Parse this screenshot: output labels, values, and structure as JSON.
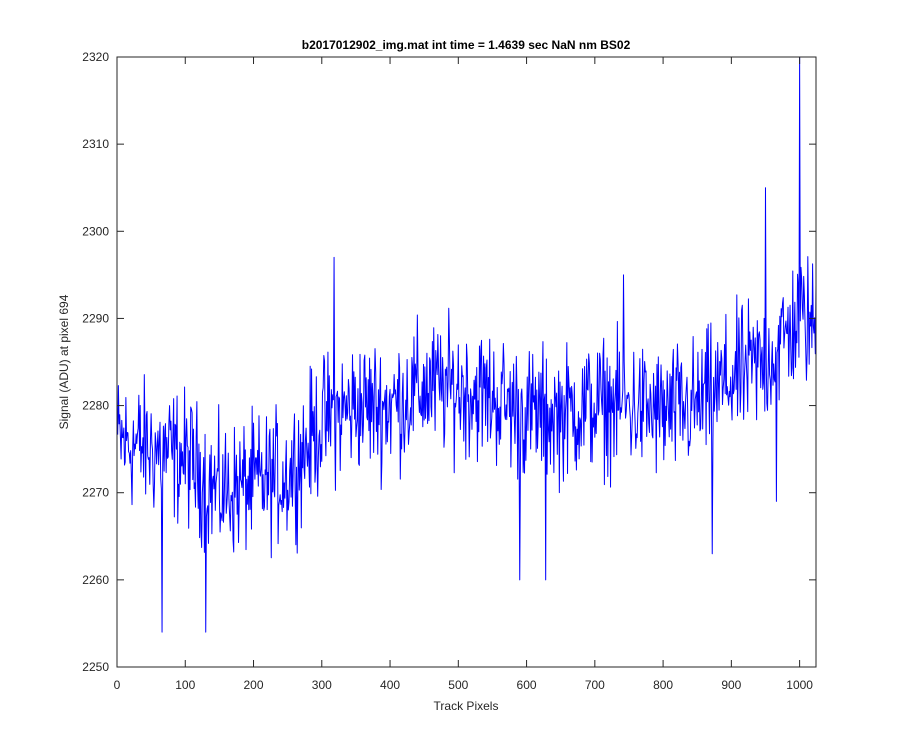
{
  "chart_data": {
    "type": "line",
    "title": "b2017012902_img.mat int time = 1.4639 sec  NaN nm BS02",
    "xlabel": "Track Pixels",
    "ylabel": "Signal (ADU) at pixel 694",
    "xlim": [
      0,
      1024
    ],
    "ylim": [
      2250,
      2320
    ],
    "xticks": [
      "0",
      "100",
      "200",
      "300",
      "400",
      "500",
      "600",
      "700",
      "800",
      "900",
      "1000"
    ],
    "yticks": [
      "2250",
      "2260",
      "2270",
      "2280",
      "2290",
      "2300",
      "2310",
      "2320"
    ],
    "grid": false,
    "line_color": "#0000ff",
    "series": [
      {
        "x_start": 1,
        "x_step": 1,
        "noise_amplitude": 8,
        "trend_points": {
          "x": [
            0,
            100,
            150,
            200,
            250,
            300,
            350,
            400,
            450,
            500,
            550,
            600,
            650,
            700,
            750,
            800,
            850,
            900,
            950,
            1000,
            1024
          ],
          "y": [
            2276,
            2274,
            2270,
            2271,
            2272,
            2278,
            2280,
            2280,
            2282,
            2282,
            2281,
            2279,
            2279,
            2280,
            2280,
            2279,
            2280,
            2283,
            2285,
            2290,
            2289
          ]
        },
        "extremes": [
          {
            "x": 66,
            "y": 2254
          },
          {
            "x": 130,
            "y": 2254
          },
          {
            "x": 318,
            "y": 2297
          },
          {
            "x": 590,
            "y": 2260
          },
          {
            "x": 628,
            "y": 2260
          },
          {
            "x": 742,
            "y": 2295
          },
          {
            "x": 872,
            "y": 2263
          },
          {
            "x": 950,
            "y": 2305
          },
          {
            "x": 966,
            "y": 2269
          },
          {
            "x": 1000,
            "y": 2320
          }
        ]
      }
    ]
  }
}
